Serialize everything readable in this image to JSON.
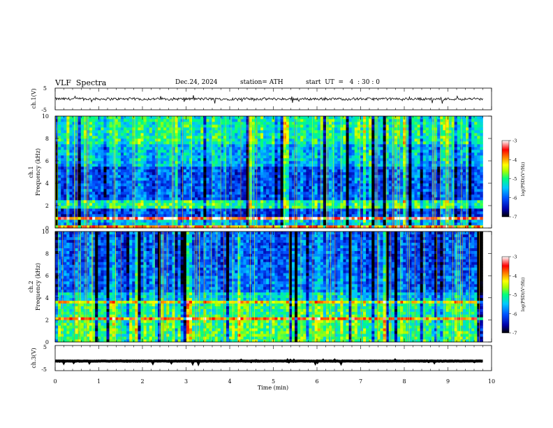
{
  "header": {
    "title": "VLF  Spectra",
    "date": "Dec.24, 2024",
    "station": "station= ATH",
    "start_ut": "start  UT  =   4  : 30 : 0"
  },
  "colors": {
    "waveform": "#000000",
    "background": "#ffffff",
    "colormap": [
      "#000000",
      "#0000a8",
      "#0050ff",
      "#00c8ff",
      "#00ff80",
      "#a8ff00",
      "#ffff00",
      "#ff8000",
      "#ff0000",
      "#ffffff"
    ]
  },
  "chart_data": [
    {
      "type": "line",
      "panel": "ch1-waveform",
      "ylabel": "ch.1(V)",
      "yticks": [
        "5",
        "-5"
      ],
      "ylim": [
        -5,
        5
      ],
      "xlim": [
        0,
        10
      ],
      "series": [
        {
          "x_range": [
            0,
            9.8
          ],
          "mean_value": 0,
          "amplitude": 0.6
        }
      ]
    },
    {
      "type": "heatmap",
      "panel": "ch1-spectrogram",
      "ylabel": "ch.1\nFrequency  (kHz)",
      "ylabel_line1": "ch.1",
      "ylabel_line2": "Frequency  (kHz)",
      "yticks": [
        "0",
        "2",
        "4",
        "6",
        "8",
        "10"
      ],
      "ylim": [
        0,
        10
      ],
      "xlim": [
        0,
        10
      ],
      "data_x_range": [
        0,
        9.8
      ],
      "colorbar": {
        "label": "log(PSD)(V²/Hz)",
        "ticks": [
          "-3",
          "-4",
          "-5",
          "-6",
          "-7"
        ],
        "range": [
          -7,
          -3
        ]
      },
      "bands": [
        {
          "f": [
            0.0,
            0.3
          ],
          "level": -3.8
        },
        {
          "f": [
            0.3,
            0.8
          ],
          "level": -5.5
        },
        {
          "f": [
            0.8,
            1.0
          ],
          "level": -3.3
        },
        {
          "f": [
            1.0,
            1.8
          ],
          "level": -6.1
        },
        {
          "f": [
            1.8,
            2.5
          ],
          "level": -5.0
        },
        {
          "f": [
            2.5,
            5.5
          ],
          "level": -6.0
        },
        {
          "f": [
            5.5,
            7.5
          ],
          "level": -5.5
        },
        {
          "f": [
            7.5,
            10.0
          ],
          "level": -5.1
        }
      ]
    },
    {
      "type": "heatmap",
      "panel": "ch2-spectrogram",
      "ylabel": "ch.2\nFrequency  (kHz)",
      "ylabel_line1": "ch.2",
      "ylabel_line2": "Frequency  (kHz)",
      "yticks": [
        "0",
        "2",
        "4",
        "6",
        "8",
        "10"
      ],
      "ylim": [
        0,
        10
      ],
      "xlim": [
        0,
        10
      ],
      "data_x_range": [
        0,
        9.8
      ],
      "colorbar": {
        "label": "log(PSD)(V²/Hz)",
        "ticks": [
          "-3",
          "-4",
          "-5",
          "-6",
          "-7"
        ],
        "range": [
          -7,
          -3
        ]
      },
      "bands": [
        {
          "f": [
            0.0,
            2.0
          ],
          "level": -4.9
        },
        {
          "f": [
            2.0,
            2.2
          ],
          "level": -3.7
        },
        {
          "f": [
            2.2,
            3.5
          ],
          "level": -5.0
        },
        {
          "f": [
            3.5,
            3.7
          ],
          "level": -4.2
        },
        {
          "f": [
            3.7,
            4.5
          ],
          "level": -5.4
        },
        {
          "f": [
            4.5,
            4.6
          ],
          "level": -3.8
        },
        {
          "f": [
            4.6,
            7.0
          ],
          "level": -5.9
        },
        {
          "f": [
            7.0,
            10.0
          ],
          "level": -6.0
        }
      ]
    },
    {
      "type": "line",
      "panel": "ch3-waveform",
      "ylabel": "ch.3(V)",
      "yticks": [
        "5",
        "-5"
      ],
      "ylim": [
        -5,
        5
      ],
      "xlim": [
        0,
        10
      ],
      "xlabel": "Time  (min)",
      "xticks": [
        "0",
        "1",
        "2",
        "3",
        "4",
        "5",
        "6",
        "7",
        "8",
        "9",
        "10"
      ],
      "series": [
        {
          "x_range": [
            0,
            9.8
          ],
          "mean_value": -1.2,
          "amplitude": 0.25
        }
      ]
    }
  ]
}
